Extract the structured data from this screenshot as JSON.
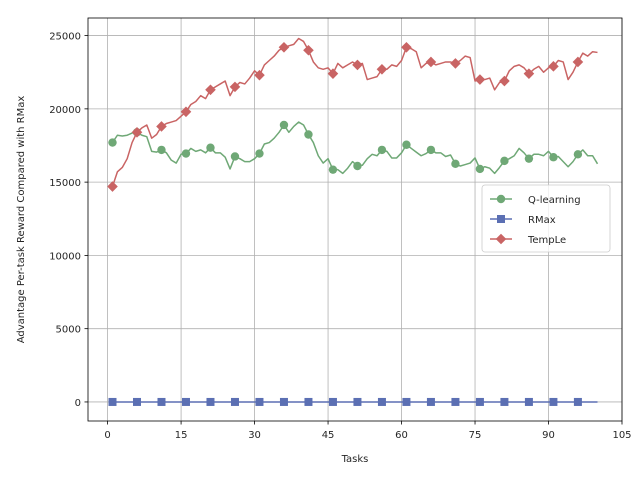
{
  "chart_data": {
    "type": "line",
    "title": "",
    "xlabel": "Tasks",
    "ylabel": "Advantage Per-task Reward Compared with RMax",
    "xlim": [
      -4,
      105
    ],
    "ylim": [
      -1300,
      26200
    ],
    "xticks": [
      0,
      15,
      30,
      45,
      60,
      75,
      90,
      105
    ],
    "yticks": [
      0,
      5000,
      10000,
      15000,
      20000,
      25000
    ],
    "grid": true,
    "legend": "center-right",
    "markevery": 5,
    "series": [
      {
        "name": "Q-learning",
        "color": "#6fa876",
        "marker": "circle",
        "x": [
          1,
          2,
          3,
          4,
          5,
          6,
          7,
          8,
          9,
          10,
          11,
          12,
          13,
          14,
          15,
          16,
          17,
          18,
          19,
          20,
          21,
          22,
          23,
          24,
          25,
          26,
          27,
          28,
          29,
          30,
          31,
          32,
          33,
          34,
          35,
          36,
          37,
          38,
          39,
          40,
          41,
          42,
          43,
          44,
          45,
          46,
          47,
          48,
          49,
          50,
          51,
          52,
          53,
          54,
          55,
          56,
          57,
          58,
          59,
          60,
          61,
          62,
          63,
          64,
          65,
          66,
          67,
          68,
          69,
          70,
          71,
          72,
          73,
          74,
          75,
          76,
          77,
          78,
          79,
          80,
          81,
          82,
          83,
          84,
          85,
          86,
          87,
          88,
          89,
          90,
          91,
          92,
          93,
          94,
          95,
          96,
          97,
          98,
          99,
          100
        ],
        "values": [
          17700,
          18200,
          18150,
          18200,
          18350,
          18400,
          18200,
          18100,
          17100,
          17050,
          17200,
          17000,
          16500,
          16300,
          16900,
          16950,
          17300,
          17100,
          17200,
          17000,
          17350,
          17000,
          17000,
          16700,
          15900,
          16750,
          16600,
          16400,
          16400,
          16600,
          16950,
          17600,
          17700,
          18000,
          18400,
          18900,
          18400,
          18800,
          19100,
          18900,
          18250,
          17700,
          16800,
          16300,
          16600,
          15850,
          15850,
          15600,
          15950,
          16400,
          16100,
          16150,
          16600,
          16900,
          16800,
          17200,
          17100,
          16650,
          16650,
          17000,
          17550,
          17300,
          17050,
          16800,
          16950,
          17200,
          17000,
          17000,
          16750,
          16850,
          16250,
          16100,
          16200,
          16300,
          16650,
          15900,
          16050,
          15950,
          15600,
          16000,
          16450,
          16600,
          16800,
          17300,
          17000,
          16600,
          16900,
          16900,
          16800,
          17100,
          16700,
          16750,
          16400,
          16050,
          16400,
          16900,
          17200,
          16800,
          16800,
          16250
        ]
      },
      {
        "name": "RMax",
        "color": "#5b6fb3",
        "marker": "square",
        "x": [
          1,
          100
        ],
        "values": [
          0,
          0
        ]
      },
      {
        "name": "TempLe",
        "color": "#c96464",
        "marker": "diamond",
        "x": [
          1,
          2,
          3,
          4,
          5,
          6,
          7,
          8,
          9,
          10,
          11,
          12,
          13,
          14,
          15,
          16,
          17,
          18,
          19,
          20,
          21,
          22,
          23,
          24,
          25,
          26,
          27,
          28,
          29,
          30,
          31,
          32,
          33,
          34,
          35,
          36,
          37,
          38,
          39,
          40,
          41,
          42,
          43,
          44,
          45,
          46,
          47,
          48,
          49,
          50,
          51,
          52,
          53,
          54,
          55,
          56,
          57,
          58,
          59,
          60,
          61,
          62,
          63,
          64,
          65,
          66,
          67,
          68,
          69,
          70,
          71,
          72,
          73,
          74,
          75,
          76,
          77,
          78,
          79,
          80,
          81,
          82,
          83,
          84,
          85,
          86,
          87,
          88,
          89,
          90,
          91,
          92,
          93,
          94,
          95,
          96,
          97,
          98,
          99,
          100
        ],
        "values": [
          14700,
          15700,
          16000,
          16600,
          17700,
          18400,
          18700,
          18900,
          18000,
          18250,
          18800,
          19000,
          19100,
          19200,
          19500,
          19800,
          20300,
          20500,
          20900,
          20700,
          21300,
          21500,
          21700,
          21900,
          20900,
          21500,
          21800,
          21700,
          22100,
          22600,
          22300,
          23000,
          23300,
          23600,
          24000,
          24200,
          24300,
          24400,
          24800,
          24600,
          24000,
          23200,
          22800,
          22700,
          22800,
          22400,
          23100,
          22800,
          23000,
          23200,
          23000,
          23100,
          22000,
          22100,
          22200,
          22700,
          22700,
          23000,
          22900,
          23300,
          24200,
          24100,
          23900,
          22800,
          23100,
          23200,
          23000,
          23100,
          23200,
          23200,
          23100,
          23300,
          23600,
          23500,
          21900,
          22000,
          22000,
          22100,
          21300,
          21800,
          21900,
          22600,
          22900,
          23000,
          22800,
          22400,
          22700,
          22900,
          22500,
          22800,
          22900,
          23300,
          23200,
          22000,
          22500,
          23200,
          23800,
          23600,
          23900,
          23850
        ]
      }
    ]
  }
}
